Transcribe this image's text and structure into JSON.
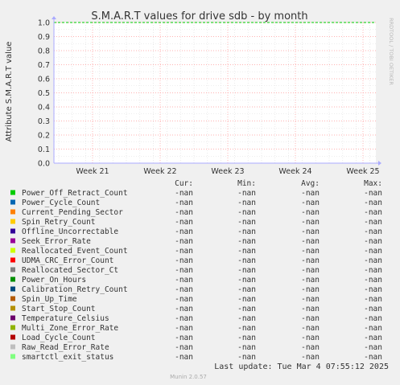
{
  "chart_data": {
    "type": "line",
    "title": "S.M.A.R.T values for drive sdb - by month",
    "ylabel": "Attribute S.M.A.R.T value",
    "xlabel": "",
    "ylim": [
      0.0,
      1.0
    ],
    "yticks": [
      "0.0",
      "0.1",
      "0.2",
      "0.3",
      "0.4",
      "0.5",
      "0.6",
      "0.7",
      "0.8",
      "0.9",
      "1.0"
    ],
    "xticks": [
      "Week 21",
      "Week 22",
      "Week 23",
      "Week 24",
      "Week 25"
    ],
    "grid": true,
    "legend_columns": [
      "Cur:",
      "Min:",
      "Avg:",
      "Max:"
    ],
    "series": [
      {
        "name": "Power_Off_Retract_Count",
        "color": "#00cc00",
        "cur": "-nan",
        "min": "-nan",
        "avg": "-nan",
        "max": "-nan"
      },
      {
        "name": "Power_Cycle_Count",
        "color": "#0066b3",
        "cur": "-nan",
        "min": "-nan",
        "avg": "-nan",
        "max": "-nan"
      },
      {
        "name": "Current_Pending_Sector",
        "color": "#ff8000",
        "cur": "-nan",
        "min": "-nan",
        "avg": "-nan",
        "max": "-nan"
      },
      {
        "name": "Spin_Retry_Count",
        "color": "#ffcc00",
        "cur": "-nan",
        "min": "-nan",
        "avg": "-nan",
        "max": "-nan"
      },
      {
        "name": "Offline_Uncorrectable",
        "color": "#330099",
        "cur": "-nan",
        "min": "-nan",
        "avg": "-nan",
        "max": "-nan"
      },
      {
        "name": "Seek_Error_Rate",
        "color": "#990099",
        "cur": "-nan",
        "min": "-nan",
        "avg": "-nan",
        "max": "-nan"
      },
      {
        "name": "Reallocated_Event_Count",
        "color": "#ccff00",
        "cur": "-nan",
        "min": "-nan",
        "avg": "-nan",
        "max": "-nan"
      },
      {
        "name": "UDMA_CRC_Error_Count",
        "color": "#ff0000",
        "cur": "-nan",
        "min": "-nan",
        "avg": "-nan",
        "max": "-nan"
      },
      {
        "name": "Reallocated_Sector_Ct",
        "color": "#808080",
        "cur": "-nan",
        "min": "-nan",
        "avg": "-nan",
        "max": "-nan"
      },
      {
        "name": "Power_On_Hours",
        "color": "#008f00",
        "cur": "-nan",
        "min": "-nan",
        "avg": "-nan",
        "max": "-nan"
      },
      {
        "name": "Calibration_Retry_Count",
        "color": "#00487d",
        "cur": "-nan",
        "min": "-nan",
        "avg": "-nan",
        "max": "-nan"
      },
      {
        "name": "Spin_Up_Time",
        "color": "#b35a00",
        "cur": "-nan",
        "min": "-nan",
        "avg": "-nan",
        "max": "-nan"
      },
      {
        "name": "Start_Stop_Count",
        "color": "#b38f00",
        "cur": "-nan",
        "min": "-nan",
        "avg": "-nan",
        "max": "-nan"
      },
      {
        "name": "Temperature_Celsius",
        "color": "#6b006b",
        "cur": "-nan",
        "min": "-nan",
        "avg": "-nan",
        "max": "-nan"
      },
      {
        "name": "Multi_Zone_Error_Rate",
        "color": "#8fb300",
        "cur": "-nan",
        "min": "-nan",
        "avg": "-nan",
        "max": "-nan"
      },
      {
        "name": "Load_Cycle_Count",
        "color": "#b30000",
        "cur": "-nan",
        "min": "-nan",
        "avg": "-nan",
        "max": "-nan"
      },
      {
        "name": "Raw_Read_Error_Rate",
        "color": "#bebebe",
        "cur": "-nan",
        "min": "-nan",
        "avg": "-nan",
        "max": "-nan"
      },
      {
        "name": "smartctl_exit_status",
        "color": "#80ff80",
        "cur": "-nan",
        "min": "-nan",
        "avg": "-nan",
        "max": "-nan"
      }
    ]
  },
  "watermark": "RRDTOOL / TOBI OETIKER",
  "last_update": "Last update: Tue Mar  4 07:55:12 2025",
  "footer": "Munin 2.0.57",
  "colors": {
    "background": "#f0f0f0",
    "plot_background": "#ffffff",
    "major_grid": "#ff9999",
    "minor_grid": "#dddddd",
    "axis": "#aaaaff",
    "limit_line": "#00cc00"
  }
}
